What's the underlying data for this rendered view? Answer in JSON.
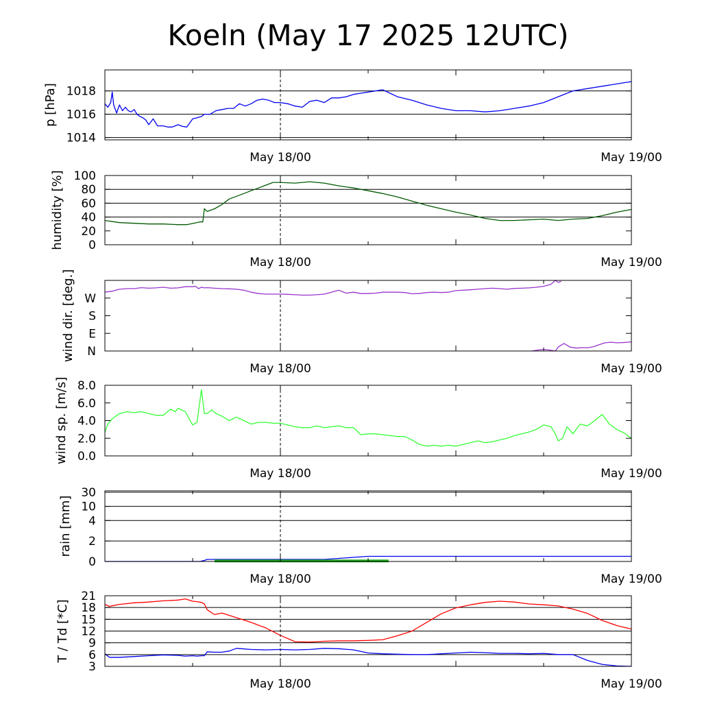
{
  "title": "Koeln (May 17 2025 12UTC)",
  "x_time_labels": [
    "May 18/00",
    "May 19/00"
  ],
  "chart_data": [
    {
      "type": "line",
      "ylabel": "p [hPa]",
      "x_unit": "hours since May 17 12UTC",
      "xlim": [
        0,
        36
      ],
      "ylim": [
        1013.8,
        1019.8
      ],
      "yticks": [
        1014,
        1016,
        1018
      ],
      "ytick_labels": [
        "1014",
        "1016",
        "1018"
      ],
      "gridlines": [
        1014,
        1016,
        1018
      ],
      "series": [
        {
          "color": "#0000ee",
          "x": [
            0,
            0.2,
            0.4,
            0.5,
            0.6,
            0.8,
            1.0,
            1.2,
            1.4,
            1.6,
            1.8,
            2.0,
            2.2,
            2.4,
            2.6,
            2.8,
            3.0,
            3.3,
            3.6,
            4.0,
            4.3,
            4.6,
            5.0,
            5.3,
            5.6,
            6.0,
            6.3,
            6.6,
            6.8,
            7.2,
            7.6,
            8.0,
            8.4,
            8.8,
            9.2,
            9.6,
            10.0,
            10.4,
            10.8,
            11.2,
            11.6,
            12.0,
            12.5,
            13.0,
            13.5,
            14.0,
            14.5,
            15.0,
            15.5,
            16.0,
            16.5,
            17.0,
            17.5,
            18.0,
            18.5,
            19.0,
            19.5,
            20.0,
            21.0,
            22.0,
            23.0,
            24.0,
            25.0,
            26.0,
            27.0,
            28.0,
            29.0,
            30.0,
            31.0,
            32.0,
            33.0,
            34.0,
            35.0,
            36.0
          ],
          "y": [
            1016.9,
            1016.6,
            1017.0,
            1017.9,
            1016.8,
            1016.1,
            1016.8,
            1016.3,
            1016.6,
            1016.3,
            1016.2,
            1016.4,
            1016.0,
            1015.8,
            1015.7,
            1015.5,
            1015.1,
            1015.6,
            1015.0,
            1015.0,
            1014.9,
            1014.9,
            1015.1,
            1014.95,
            1014.9,
            1015.6,
            1015.7,
            1015.8,
            1016.0,
            1016.0,
            1016.3,
            1016.4,
            1016.5,
            1016.5,
            1016.9,
            1016.7,
            1016.9,
            1017.2,
            1017.3,
            1017.2,
            1017.0,
            1017.0,
            1016.9,
            1016.7,
            1016.6,
            1017.1,
            1017.2,
            1017.0,
            1017.4,
            1017.4,
            1017.5,
            1017.7,
            1017.8,
            1017.9,
            1018.0,
            1018.1,
            1017.8,
            1017.5,
            1017.2,
            1016.8,
            1016.5,
            1016.3,
            1016.3,
            1016.2,
            1016.3,
            1016.5,
            1016.7,
            1017.0,
            1017.5,
            1018.0,
            1018.2,
            1018.4,
            1018.6,
            1018.8
          ]
        }
      ]
    },
    {
      "type": "line",
      "ylabel": "humidity [%]",
      "x_unit": "hours since May 17 12UTC",
      "xlim": [
        0,
        36
      ],
      "ylim": [
        0,
        100
      ],
      "yticks": [
        0,
        20,
        40,
        60,
        80,
        100
      ],
      "ytick_labels": [
        "0",
        "20",
        "40",
        "60",
        "80",
        "100"
      ],
      "gridlines": [
        40,
        60,
        80
      ],
      "series": [
        {
          "color": "#005a00",
          "x": [
            0,
            1,
            2,
            3,
            4,
            5,
            5.6,
            6.5,
            6.7,
            6.8,
            7,
            7.5,
            8,
            8.5,
            9,
            9.5,
            10,
            10.5,
            11,
            11.5,
            12,
            13,
            14,
            15,
            16,
            17,
            18,
            19,
            20,
            21,
            22,
            23,
            24,
            25,
            26,
            27,
            28,
            29,
            30,
            31,
            32,
            33,
            34,
            35,
            36
          ],
          "y": [
            35,
            32,
            31,
            30,
            30,
            29,
            29,
            33,
            33,
            52,
            48,
            52,
            58,
            66,
            70,
            74,
            78,
            82,
            86,
            90,
            90,
            89,
            91,
            89,
            85,
            82,
            78,
            74,
            69,
            63,
            57,
            52,
            47,
            43,
            38,
            35,
            35,
            36,
            37,
            35,
            37,
            38,
            42,
            47,
            51
          ]
        }
      ]
    },
    {
      "type": "line",
      "ylabel": "wind dir. [deg.]",
      "x_unit": "hours since May 17 12UTC",
      "xlim": [
        0,
        36
      ],
      "ylim": [
        0,
        360
      ],
      "yticks": [
        0,
        90,
        180,
        270
      ],
      "ytick_labels": [
        "N",
        "E",
        "S",
        "W"
      ],
      "gridlines": [],
      "series": [
        {
          "color": "#9933cc",
          "x": [
            0,
            0.5,
            1,
            1.5,
            2,
            2.5,
            3,
            3.5,
            4,
            4.5,
            5,
            5.5,
            6,
            6.2,
            6.4,
            6.6,
            6.8,
            7,
            7.5,
            8,
            8.5,
            9,
            9.5,
            10,
            10.5,
            11,
            11.5,
            12,
            12.5,
            13,
            13.5,
            14,
            14.5,
            15,
            15.5,
            16,
            16.5,
            17,
            17.5,
            18,
            18.5,
            19,
            19.5,
            20,
            20.5,
            21,
            21.5,
            22,
            22.5,
            23,
            23.5,
            24,
            24.5,
            25,
            25.5,
            26,
            26.5,
            27,
            27.5,
            28,
            28.5,
            29,
            29.5,
            30,
            30.5,
            30.8,
            31.0,
            31.2
          ],
          "y": [
            300,
            305,
            315,
            318,
            318,
            323,
            320,
            322,
            325,
            320,
            322,
            328,
            328,
            330,
            318,
            325,
            322,
            323,
            320,
            318,
            317,
            315,
            310,
            300,
            293,
            290,
            290,
            290,
            289,
            287,
            285,
            285,
            287,
            290,
            300,
            310,
            295,
            300,
            293,
            293,
            295,
            300,
            300,
            300,
            298,
            292,
            293,
            298,
            300,
            298,
            300,
            308,
            310,
            312,
            315,
            318,
            320,
            318,
            315,
            319,
            320,
            322,
            325,
            330,
            340,
            360,
            350,
            355
          ]
        },
        {
          "color": "#9933cc",
          "x": [
            29.2,
            29.6,
            30.0,
            30.4,
            30.8,
            31.0,
            31.2,
            31.4,
            31.8,
            32.2,
            32.6,
            33.0,
            33.4,
            33.8,
            34.2,
            34.6,
            35.0,
            35.4,
            35.8,
            36.0
          ],
          "y": [
            0,
            5,
            8,
            5,
            0,
            20,
            30,
            38,
            20,
            15,
            17,
            16,
            22,
            32,
            42,
            45,
            42,
            43,
            45,
            47
          ]
        }
      ]
    },
    {
      "type": "line",
      "ylabel": "wind sp. [m/s]",
      "x_unit": "hours since May 17 12UTC",
      "xlim": [
        0,
        36
      ],
      "ylim": [
        0,
        8
      ],
      "yticks": [
        0,
        2,
        4,
        6,
        8
      ],
      "ytick_labels": [
        "0.0",
        "2.0",
        "4.0",
        "6.0",
        "8.0"
      ],
      "gridlines": [],
      "series": [
        {
          "color": "#33ff33",
          "x": [
            0,
            0.2,
            0.5,
            1,
            1.5,
            2,
            2.5,
            3,
            3.5,
            4,
            4.5,
            4.8,
            5,
            5.5,
            6,
            6.3,
            6.6,
            6.8,
            7,
            7.3,
            7.6,
            8,
            8.5,
            9,
            9.5,
            10,
            10.5,
            11,
            11.5,
            12,
            12.5,
            13,
            13.5,
            14,
            14.5,
            15,
            15.5,
            16,
            16.5,
            17,
            17.5,
            18,
            18.5,
            19,
            19.5,
            20,
            20.5,
            21,
            21.5,
            22,
            22.5,
            23,
            23.5,
            24,
            24.5,
            25,
            25.5,
            26,
            26.5,
            27,
            27.5,
            28,
            28.5,
            29,
            29.5,
            30,
            30.5,
            30.8,
            31,
            31.3,
            31.6,
            32,
            32.5,
            33,
            33.5,
            34,
            34.5,
            35,
            35.5,
            36
          ],
          "y": [
            2.7,
            3.6,
            4.2,
            4.8,
            5.0,
            4.9,
            5.0,
            4.8,
            4.6,
            4.6,
            5.3,
            5.0,
            5.4,
            5.0,
            3.5,
            3.8,
            7.5,
            4.8,
            4.8,
            5.2,
            4.8,
            4.5,
            4.0,
            4.4,
            4.0,
            3.6,
            3.8,
            3.8,
            3.7,
            3.7,
            3.5,
            3.3,
            3.2,
            3.2,
            3.4,
            3.2,
            3.3,
            3.4,
            3.2,
            3.2,
            2.4,
            2.5,
            2.5,
            2.4,
            2.3,
            2.2,
            2.2,
            1.8,
            1.3,
            1.1,
            1.2,
            1.1,
            1.2,
            1.1,
            1.3,
            1.5,
            1.7,
            1.5,
            1.6,
            1.8,
            2.0,
            2.3,
            2.5,
            2.7,
            3.0,
            3.5,
            3.3,
            2.5,
            1.7,
            2.0,
            3.3,
            2.5,
            3.6,
            3.4,
            4.0,
            4.7,
            3.6,
            3.0,
            2.6,
            2.0
          ]
        }
      ]
    },
    {
      "type": "line",
      "ylabel": "rain [mm]",
      "x_unit": "hours since May 17 12UTC",
      "xlim": [
        0,
        36
      ],
      "ylim": [
        0,
        30
      ],
      "yticks": [
        0,
        2,
        4,
        10,
        30
      ],
      "ytick_labels": [
        "0",
        "2",
        "4",
        "10",
        "30"
      ],
      "gridlines": [
        2,
        4,
        10,
        30
      ],
      "series": [
        {
          "color": "#0000ee",
          "x": [
            0,
            6.5,
            6.8,
            7.0,
            10.0,
            12.0,
            15.0,
            16.0,
            17.0,
            18.0,
            19.0,
            20.0,
            24.0,
            30.0,
            36.0
          ],
          "y": [
            0,
            0,
            0.1,
            0.2,
            0.2,
            0.2,
            0.2,
            0.3,
            0.4,
            0.5,
            0.5,
            0.5,
            0.5,
            0.5,
            0.5
          ]
        },
        {
          "color": "#22aa22",
          "x": [
            7.5,
            8.0,
            9.0,
            10.0,
            10.5,
            16.5,
            17.0,
            18.0,
            19.0,
            19.4
          ],
          "y": [
            0.05,
            0.05,
            0.05,
            0.05,
            0.05,
            0.05,
            0.05,
            0.05,
            0.05,
            0.05
          ]
        }
      ]
    },
    {
      "type": "line",
      "ylabel": "T / Td [*C]",
      "x_unit": "hours since May 17 12UTC",
      "xlim": [
        0,
        36
      ],
      "ylim": [
        3,
        21
      ],
      "yticks": [
        3,
        6,
        9,
        12,
        15,
        18,
        21
      ],
      "ytick_labels": [
        "3",
        "6",
        "9",
        "12",
        "15",
        "18",
        "21"
      ],
      "gridlines": [
        6,
        9,
        12,
        15,
        18,
        21
      ],
      "series": [
        {
          "name": "T",
          "color": "#ff0000",
          "x": [
            0,
            0.3,
            0.6,
            1,
            2,
            3,
            4,
            5,
            5.5,
            6,
            6.3,
            6.6,
            6.8,
            7,
            7.5,
            8,
            9,
            10,
            11,
            12,
            13,
            14,
            15,
            16,
            17,
            18,
            19,
            20,
            21,
            22,
            23,
            24,
            25,
            26,
            27,
            28,
            29,
            30,
            31,
            32,
            33,
            34,
            35,
            36
          ],
          "y": [
            18.8,
            18.3,
            18.5,
            18.8,
            19.2,
            19.4,
            19.7,
            19.9,
            20.2,
            19.6,
            19.5,
            19.3,
            18.9,
            17.4,
            16.2,
            16.6,
            15.4,
            14.2,
            12.8,
            10.9,
            9.3,
            9.2,
            9.4,
            9.5,
            9.5,
            9.6,
            9.8,
            10.8,
            12.0,
            14.2,
            16.4,
            17.9,
            18.7,
            19.3,
            19.6,
            19.4,
            18.9,
            18.7,
            18.4,
            17.6,
            16.5,
            14.7,
            13.4,
            12.5
          ]
        },
        {
          "name": "Td",
          "color": "#0000ee",
          "x": [
            0,
            0.3,
            1,
            2,
            3,
            4,
            5,
            5.5,
            6,
            6.3,
            6.6,
            6.8,
            7,
            7.5,
            8,
            8.5,
            9,
            10,
            11,
            12,
            13,
            14,
            15,
            16,
            17,
            18,
            19,
            20,
            21,
            22,
            23,
            24,
            25,
            26,
            27,
            28,
            29,
            30,
            31,
            32,
            33,
            34,
            35,
            36
          ],
          "y": [
            6.2,
            5.3,
            5.3,
            5.5,
            5.7,
            5.9,
            5.8,
            5.6,
            5.7,
            5.6,
            5.7,
            5.7,
            6.7,
            6.6,
            6.6,
            6.9,
            7.6,
            7.3,
            7.2,
            7.3,
            7.2,
            7.3,
            7.6,
            7.5,
            7.2,
            6.4,
            6.2,
            6.1,
            6.0,
            6.0,
            6.2,
            6.4,
            6.6,
            6.5,
            6.3,
            6.3,
            6.2,
            6.3,
            6.0,
            6.0,
            4.5,
            3.5,
            3.1,
            3.0
          ]
        }
      ]
    }
  ]
}
